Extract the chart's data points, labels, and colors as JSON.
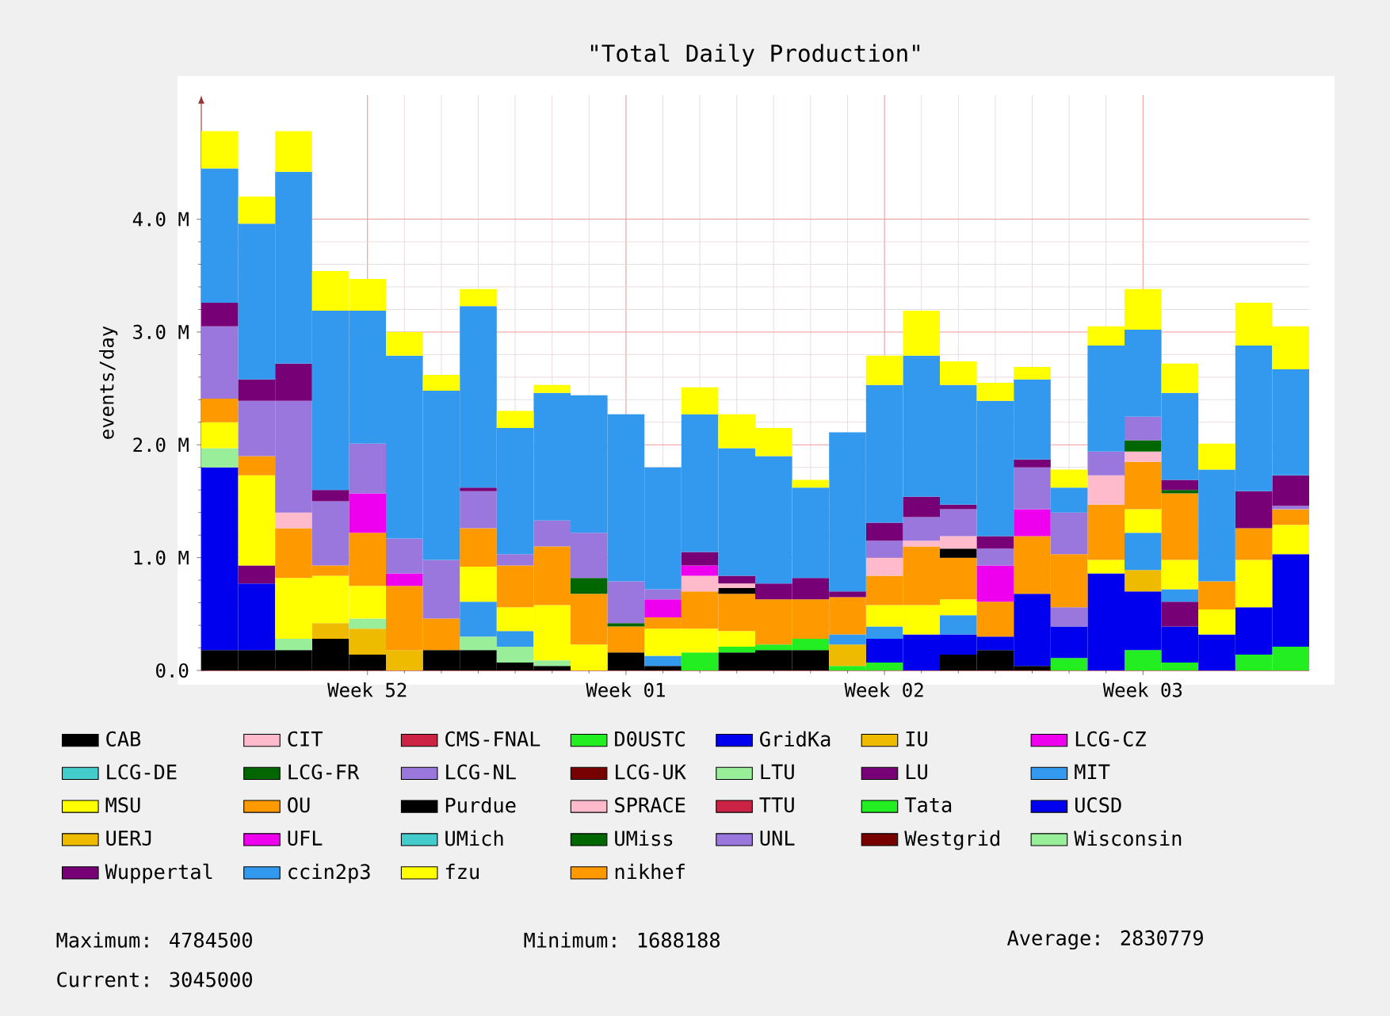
{
  "chart_data": {
    "type": "bar",
    "stacked": true,
    "title": "\"Total Daily Production\"",
    "ylabel": "events/day",
    "categories": [
      null,
      null,
      null,
      null,
      "Week 52",
      null,
      null,
      null,
      null,
      null,
      null,
      "Week 01",
      null,
      null,
      null,
      null,
      null,
      null,
      "Week 02",
      null,
      null,
      null,
      null,
      null,
      null,
      "Week 03",
      null,
      null,
      null,
      null
    ],
    "ylim": [
      0,
      5.1
    ],
    "yticks": [
      {
        "value": 0,
        "label": "0.0"
      },
      {
        "value": 1,
        "label": "1.0 M"
      },
      {
        "value": 2,
        "label": "2.0 M"
      },
      {
        "value": 3,
        "label": "3.0 M"
      },
      {
        "value": 4,
        "label": "4.0 M"
      }
    ],
    "grid": true,
    "legend": "bottom",
    "series": [
      {
        "name": "CAB",
        "color": "#000000",
        "values": [
          0.18,
          0.18,
          0.18,
          0.28,
          0.14,
          null,
          0.18,
          0.18,
          0.07,
          0.04,
          null,
          0.16,
          0.04,
          null,
          0.16,
          0.18,
          0.18,
          null,
          null,
          null,
          0.14,
          0.18,
          0.04,
          null,
          null,
          null,
          null,
          null,
          null,
          null
        ]
      },
      {
        "name": "CIT",
        "color": "#ffbbcc",
        "values": [
          null,
          null,
          null,
          null,
          null,
          null,
          null,
          null,
          null,
          null,
          null,
          null,
          null,
          null,
          null,
          null,
          null,
          null,
          null,
          null,
          null,
          null,
          null,
          null,
          null,
          null,
          null,
          null,
          null,
          null
        ]
      },
      {
        "name": "CMS-FNAL",
        "color": "#cc2244",
        "values": [
          null,
          null,
          null,
          null,
          null,
          null,
          null,
          null,
          null,
          null,
          null,
          null,
          null,
          null,
          null,
          null,
          null,
          null,
          null,
          null,
          null,
          null,
          null,
          null,
          null,
          null,
          null,
          null,
          null,
          null
        ]
      },
      {
        "name": "D0USTC",
        "color": "#22ee22",
        "values": [
          null,
          null,
          null,
          null,
          null,
          null,
          null,
          null,
          null,
          null,
          null,
          null,
          null,
          0.16,
          0.05,
          0.05,
          0.1,
          0.04,
          0.07,
          null,
          null,
          null,
          null,
          0.11,
          null,
          0.18,
          0.07,
          null,
          0.14,
          0.21
        ]
      },
      {
        "name": "GridKa",
        "color": "#0000ee",
        "values": [
          1.62,
          0.59,
          null,
          null,
          null,
          null,
          null,
          null,
          null,
          null,
          null,
          null,
          null,
          null,
          null,
          null,
          null,
          null,
          0.21,
          0.32,
          0.18,
          0.12,
          0.64,
          0.28,
          0.86,
          0.52,
          0.32,
          0.32,
          0.42,
          0.82
        ]
      },
      {
        "name": "IU",
        "color": "#eebb00",
        "values": [
          null,
          null,
          null,
          0.14,
          0.23,
          0.18,
          null,
          null,
          null,
          null,
          null,
          null,
          null,
          null,
          null,
          null,
          null,
          0.19,
          null,
          null,
          null,
          null,
          null,
          null,
          null,
          0.19,
          null,
          null,
          null,
          null
        ]
      },
      {
        "name": "LCG-CZ",
        "color": "#ee00ee",
        "values": [
          null,
          null,
          null,
          null,
          null,
          null,
          null,
          null,
          null,
          null,
          null,
          null,
          null,
          null,
          null,
          null,
          null,
          null,
          null,
          null,
          null,
          null,
          null,
          null,
          null,
          null,
          null,
          null,
          null,
          null
        ]
      },
      {
        "name": "LCG-DE",
        "color": "#44cccc",
        "values": [
          null,
          null,
          null,
          null,
          null,
          null,
          null,
          null,
          null,
          null,
          null,
          null,
          null,
          null,
          null,
          null,
          null,
          null,
          null,
          null,
          null,
          null,
          null,
          null,
          null,
          null,
          null,
          null,
          null,
          null
        ]
      },
      {
        "name": "LCG-FR",
        "color": "#006600",
        "values": [
          null,
          null,
          null,
          null,
          null,
          null,
          null,
          null,
          null,
          null,
          null,
          null,
          null,
          null,
          null,
          null,
          null,
          null,
          null,
          null,
          null,
          null,
          null,
          null,
          null,
          null,
          null,
          null,
          null,
          null
        ]
      },
      {
        "name": "LCG-NL",
        "color": "#9977dd",
        "values": [
          null,
          null,
          null,
          null,
          null,
          null,
          null,
          null,
          null,
          null,
          null,
          null,
          null,
          null,
          null,
          null,
          null,
          null,
          null,
          null,
          null,
          null,
          null,
          0.17,
          null,
          null,
          null,
          null,
          null,
          null
        ]
      },
      {
        "name": "LCG-UK",
        "color": "#770000",
        "values": [
          null,
          null,
          null,
          null,
          null,
          null,
          null,
          null,
          null,
          null,
          null,
          null,
          null,
          null,
          null,
          null,
          null,
          null,
          null,
          null,
          null,
          null,
          null,
          null,
          null,
          null,
          null,
          null,
          null,
          null
        ]
      },
      {
        "name": "LTU",
        "color": "#99ee99",
        "values": [
          0.17,
          null,
          0.1,
          null,
          0.09,
          null,
          null,
          0.12,
          0.14,
          0.05,
          null,
          null,
          null,
          null,
          null,
          null,
          null,
          null,
          null,
          null,
          null,
          null,
          null,
          null,
          null,
          null,
          null,
          null,
          null,
          null
        ]
      },
      {
        "name": "LU",
        "color": "#770077",
        "values": [
          null,
          0.16,
          null,
          null,
          null,
          null,
          null,
          null,
          null,
          null,
          null,
          null,
          null,
          null,
          null,
          null,
          null,
          null,
          null,
          null,
          null,
          null,
          null,
          null,
          null,
          null,
          0.22,
          null,
          null,
          null
        ]
      },
      {
        "name": "MIT",
        "color": "#3399ee",
        "values": [
          null,
          null,
          null,
          null,
          null,
          null,
          null,
          0.31,
          0.14,
          null,
          null,
          null,
          0.09,
          null,
          null,
          null,
          null,
          0.09,
          0.11,
          null,
          0.17,
          null,
          null,
          null,
          null,
          0.33,
          0.11,
          null,
          null,
          null
        ]
      },
      {
        "name": "MSU",
        "color": "#ffff00",
        "values": [
          0.23,
          0.8,
          0.54,
          0.42,
          0.29,
          null,
          null,
          0.31,
          0.21,
          0.49,
          0.23,
          null,
          0.24,
          0.21,
          0.14,
          null,
          null,
          null,
          0.19,
          0.26,
          0.14,
          null,
          null,
          null,
          0.12,
          0.21,
          0.26,
          0.22,
          0.42,
          0.26
        ]
      },
      {
        "name": "OU",
        "color": "#ff9900",
        "values": [
          0.21,
          0.17,
          0.44,
          0.09,
          0.47,
          0.57,
          0.28,
          0.34,
          0.37,
          0.52,
          0.45,
          0.23,
          0.1,
          0.33,
          0.33,
          0.4,
          0.35,
          0.33,
          0.26,
          0.52,
          0.37,
          0.31,
          0.51,
          0.47,
          0.49,
          0.42,
          0.59,
          0.25,
          0.28,
          0.14
        ]
      },
      {
        "name": "Purdue",
        "color": "#000000",
        "values": [
          null,
          null,
          null,
          null,
          null,
          null,
          null,
          null,
          null,
          null,
          null,
          null,
          null,
          null,
          0.05,
          null,
          null,
          null,
          null,
          null,
          0.08,
          null,
          null,
          null,
          null,
          null,
          null,
          null,
          null,
          null
        ]
      },
      {
        "name": "SPRACE",
        "color": "#ffbbcc",
        "values": [
          null,
          null,
          0.14,
          null,
          null,
          null,
          null,
          null,
          null,
          null,
          null,
          null,
          null,
          0.14,
          0.04,
          null,
          null,
          null,
          0.16,
          0.05,
          0.11,
          null,
          null,
          null,
          0.26,
          0.09,
          null,
          null,
          null,
          null
        ]
      },
      {
        "name": "TTU",
        "color": "#cc2244",
        "values": [
          null,
          null,
          null,
          null,
          null,
          null,
          null,
          null,
          null,
          null,
          null,
          null,
          null,
          null,
          null,
          null,
          null,
          null,
          null,
          null,
          null,
          null,
          null,
          null,
          null,
          null,
          null,
          null,
          null,
          null
        ]
      },
      {
        "name": "Tata",
        "color": "#22ee22",
        "values": [
          null,
          null,
          null,
          null,
          null,
          null,
          null,
          null,
          null,
          null,
          null,
          null,
          null,
          null,
          null,
          null,
          null,
          null,
          null,
          null,
          null,
          null,
          null,
          null,
          null,
          null,
          null,
          null,
          null,
          null
        ]
      },
      {
        "name": "UCSD",
        "color": "#0000ee",
        "values": [
          null,
          null,
          null,
          null,
          null,
          null,
          null,
          null,
          null,
          null,
          null,
          null,
          null,
          null,
          null,
          null,
          null,
          null,
          null,
          null,
          null,
          null,
          null,
          null,
          null,
          null,
          null,
          null,
          null,
          null
        ]
      },
      {
        "name": "UERJ",
        "color": "#eebb00",
        "values": [
          null,
          null,
          null,
          null,
          null,
          null,
          null,
          null,
          null,
          null,
          null,
          null,
          null,
          null,
          null,
          null,
          null,
          null,
          null,
          null,
          null,
          null,
          null,
          null,
          null,
          null,
          null,
          null,
          null,
          null
        ]
      },
      {
        "name": "UFL",
        "color": "#ee00ee",
        "values": [
          null,
          null,
          null,
          null,
          0.35,
          0.11,
          null,
          null,
          null,
          null,
          null,
          null,
          0.16,
          0.09,
          null,
          null,
          null,
          null,
          null,
          null,
          null,
          0.32,
          0.24,
          null,
          null,
          null,
          null,
          null,
          null,
          null
        ]
      },
      {
        "name": "UMich",
        "color": "#44cccc",
        "values": [
          null,
          null,
          null,
          null,
          null,
          null,
          null,
          null,
          null,
          null,
          null,
          null,
          null,
          null,
          null,
          null,
          null,
          null,
          null,
          null,
          null,
          null,
          null,
          null,
          null,
          null,
          null,
          null,
          null,
          null
        ]
      },
      {
        "name": "UMiss",
        "color": "#006600",
        "values": [
          null,
          null,
          null,
          null,
          null,
          null,
          null,
          null,
          null,
          null,
          0.14,
          0.03,
          null,
          null,
          null,
          null,
          null,
          null,
          null,
          null,
          null,
          null,
          null,
          null,
          null,
          0.1,
          0.03,
          null,
          null,
          null
        ]
      },
      {
        "name": "UNL",
        "color": "#9977dd",
        "values": [
          0.64,
          0.49,
          0.99,
          0.57,
          0.44,
          0.31,
          0.52,
          0.33,
          0.1,
          0.23,
          0.4,
          0.37,
          0.09,
          null,
          null,
          null,
          null,
          null,
          0.15,
          0.21,
          0.24,
          0.15,
          0.37,
          0.37,
          0.21,
          0.21,
          null,
          null,
          null,
          0.03
        ]
      },
      {
        "name": "Westgrid",
        "color": "#770000",
        "values": [
          null,
          null,
          null,
          null,
          null,
          null,
          null,
          null,
          null,
          null,
          null,
          null,
          null,
          null,
          null,
          null,
          null,
          null,
          null,
          null,
          null,
          null,
          null,
          null,
          null,
          null,
          null,
          null,
          null,
          null
        ]
      },
      {
        "name": "Wisconsin",
        "color": "#99ee99",
        "values": [
          null,
          null,
          null,
          null,
          null,
          null,
          null,
          null,
          null,
          null,
          null,
          null,
          null,
          null,
          null,
          null,
          null,
          null,
          null,
          null,
          null,
          null,
          null,
          null,
          null,
          null,
          null,
          null,
          null,
          null
        ]
      },
      {
        "name": "Wuppertal",
        "color": "#770077",
        "values": [
          0.21,
          0.19,
          0.33,
          0.1,
          null,
          null,
          null,
          0.03,
          null,
          null,
          null,
          null,
          null,
          0.12,
          0.07,
          0.14,
          0.19,
          0.05,
          0.16,
          0.18,
          0.04,
          0.11,
          0.07,
          null,
          null,
          null,
          0.09,
          null,
          0.33,
          0.27
        ]
      },
      {
        "name": "ccin2p3",
        "color": "#3399ee",
        "values": [
          1.19,
          1.38,
          1.7,
          1.59,
          1.18,
          1.62,
          1.5,
          1.61,
          1.12,
          1.13,
          1.22,
          1.48,
          1.08,
          1.22,
          1.13,
          1.13,
          0.8,
          1.41,
          1.22,
          1.25,
          1.06,
          1.2,
          0.71,
          0.22,
          0.94,
          0.77,
          0.77,
          0.99,
          1.29,
          0.94
        ]
      },
      {
        "name": "fzu",
        "color": "#ffff00",
        "values": [
          0.33,
          0.24,
          0.36,
          0.35,
          0.28,
          0.21,
          0.14,
          0.15,
          0.15,
          0.07,
          null,
          null,
          null,
          0.24,
          0.3,
          0.25,
          0.07,
          null,
          0.26,
          0.4,
          0.21,
          0.16,
          0.11,
          0.16,
          0.17,
          0.36,
          0.26,
          0.23,
          0.38,
          0.38
        ]
      },
      {
        "name": "nikhef",
        "color": "#ff9900",
        "values": [
          null,
          null,
          null,
          null,
          null,
          null,
          null,
          null,
          null,
          null,
          null,
          null,
          null,
          null,
          null,
          null,
          null,
          null,
          null,
          null,
          null,
          null,
          null,
          null,
          null,
          null,
          null,
          null,
          null,
          null
        ]
      }
    ],
    "annotations": [
      "Maximum:    4784500",
      "Minimum:     1688188",
      "Average:      2830779",
      "Current:    3045000"
    ]
  }
}
